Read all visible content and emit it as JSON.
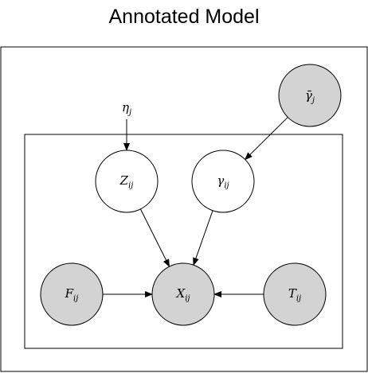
{
  "title": "Annotated Model",
  "colors": {
    "observed": "#d3d3d3",
    "latent": "#ffffff",
    "stroke": "#000000"
  },
  "free_labels": {
    "eta": {
      "base": "η",
      "sub": "j"
    }
  },
  "nodes": {
    "gamma_bar": {
      "base": "γ̄",
      "sub": "j",
      "observed": true
    },
    "z": {
      "base": "Z",
      "sub": "ij",
      "observed": false
    },
    "gamma": {
      "base": "γ",
      "sub": "ij",
      "observed": false
    },
    "f": {
      "base": "F",
      "sub": "ij",
      "observed": true
    },
    "x": {
      "base": "X",
      "sub": "ij",
      "observed": true
    },
    "t": {
      "base": "T",
      "sub": "ij",
      "observed": true
    }
  },
  "edges": [
    {
      "from": "eta",
      "to": "z"
    },
    {
      "from": "gamma_bar",
      "to": "gamma"
    },
    {
      "from": "z",
      "to": "x"
    },
    {
      "from": "gamma",
      "to": "x"
    },
    {
      "from": "f",
      "to": "x"
    },
    {
      "from": "t",
      "to": "x"
    }
  ]
}
